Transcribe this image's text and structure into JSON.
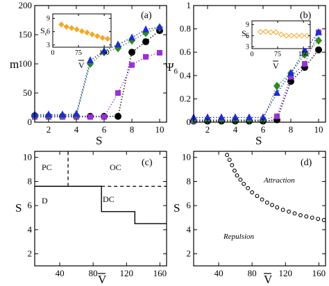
{
  "chart_data": [
    {
      "type": "scatter",
      "panel_label": "(a)",
      "xlabel": "S",
      "ylabel": "m",
      "xlim": [
        1,
        10.5
      ],
      "ylim": [
        0,
        200
      ],
      "xticks": [
        "2",
        "4",
        "6",
        "8",
        "10"
      ],
      "yticks": [
        "0",
        "50",
        "100",
        "150",
        "200"
      ],
      "colors": {
        "blue": "#1f2bd8",
        "green": "#2e8b22",
        "purple": "#9b30d9",
        "black": "#000000"
      },
      "series": [
        {
          "color": "blue",
          "marker": "triangle",
          "x": [
            1,
            2,
            3,
            4,
            5,
            6,
            7,
            8,
            9,
            10
          ],
          "y": [
            13,
            13,
            13,
            14,
            106,
            122,
            133,
            145,
            159,
            163
          ]
        },
        {
          "color": "green",
          "marker": "diamond",
          "x": [
            1,
            2,
            3,
            4,
            5,
            6,
            7,
            8,
            9,
            10
          ],
          "y": [
            11,
            11,
            11,
            12,
            100,
            120,
            127,
            140,
            153,
            162
          ]
        },
        {
          "color": "purple",
          "marker": "square",
          "x": [
            1,
            2,
            3,
            4,
            5,
            6,
            7,
            8,
            9,
            10
          ],
          "y": [
            9,
            9,
            9,
            9,
            9,
            9,
            50,
            98,
            112,
            119
          ]
        },
        {
          "color": "black",
          "marker": "circle",
          "x": [
            1,
            2,
            3,
            4,
            5,
            6,
            7,
            8,
            9,
            10
          ],
          "y": [
            11,
            10,
            10,
            10,
            10,
            10,
            10,
            120,
            138,
            157
          ]
        }
      ],
      "inset": {
        "ylabel": "S_c",
        "xlim": [
          0,
          170
        ],
        "ylim": [
          2.5,
          10
        ],
        "xticks": [
          "0",
          "75",
          "150"
        ],
        "yticks": [
          "3",
          "6",
          "9"
        ],
        "color": "#f5a623",
        "series": {
          "x": [
            25,
            40,
            55,
            70,
            85,
            100,
            115,
            130,
            145,
            160
          ],
          "y": [
            7.6,
            7.1,
            6.8,
            6.5,
            6.1,
            5.8,
            5.4,
            5.0,
            4.6,
            4.4
          ]
        }
      }
    },
    {
      "type": "scatter",
      "panel_label": "(b)",
      "xlabel": "S",
      "ylabel": "Ψ6",
      "xlim": [
        1,
        10.5
      ],
      "ylim": [
        0,
        1
      ],
      "xticks": [
        "2",
        "4",
        "6",
        "8",
        "10"
      ],
      "yticks": [
        "0",
        "0.2",
        "0.4",
        "0.6",
        "0.8",
        "1"
      ],
      "series": [
        {
          "color": "blue",
          "marker": "triangle",
          "x": [
            1,
            2,
            3,
            4,
            5,
            6,
            7,
            8,
            9,
            10
          ],
          "y": [
            0.04,
            0.04,
            0.04,
            0.04,
            0.04,
            0.04,
            0.25,
            0.42,
            0.62,
            0.77
          ]
        },
        {
          "color": "green",
          "marker": "diamond",
          "x": [
            1,
            2,
            3,
            4,
            5,
            6,
            7,
            8,
            9,
            10
          ],
          "y": [
            0.02,
            0.02,
            0.02,
            0.02,
            0.02,
            0.02,
            0.31,
            0.42,
            0.58,
            0.7
          ]
        },
        {
          "color": "purple",
          "marker": "square",
          "x": [
            1,
            2,
            3,
            4,
            5,
            6,
            7,
            8,
            9,
            10
          ],
          "y": [
            0.01,
            0.02,
            0.02,
            0.02,
            0.02,
            0.02,
            0.05,
            0.39,
            0.5,
            0.77
          ]
        },
        {
          "color": "black",
          "marker": "circle",
          "x": [
            1,
            2,
            3,
            4,
            5,
            6,
            7,
            8,
            9,
            10
          ],
          "y": [
            0.01,
            0.01,
            0.01,
            0.01,
            0.01,
            0.01,
            0.02,
            0.35,
            0.47,
            0.62
          ]
        }
      ],
      "inset": {
        "ylabel": "S_c",
        "xlim": [
          0,
          170
        ],
        "ylim": [
          2.5,
          10
        ],
        "xticks": [
          "0",
          "75",
          "150"
        ],
        "yticks": [
          "3",
          "6",
          "9"
        ],
        "color": "#f5a623",
        "series": {
          "x": [
            25,
            40,
            55,
            70,
            85,
            100,
            115,
            130,
            145,
            160
          ],
          "y": [
            7.0,
            7.1,
            6.9,
            6.9,
            6.3,
            6.0,
            6.0,
            6.0,
            6.0,
            6.0
          ]
        }
      }
    },
    {
      "type": "line",
      "panel_label": "(c)",
      "xlabel": "V̄",
      "ylabel": "S",
      "xlim": [
        10,
        168
      ],
      "ylim": [
        1,
        10.5
      ],
      "xticks": [
        "40",
        "80",
        "120",
        "160"
      ],
      "yticks": [
        "2",
        "4",
        "6",
        "8",
        "10"
      ],
      "regions": [
        "PC",
        "OC",
        "D",
        "DC"
      ],
      "boundaries": {
        "solid_step": [
          [
            10,
            7.6
          ],
          [
            90,
            7.6
          ],
          [
            90,
            5.5
          ],
          [
            130,
            5.5
          ],
          [
            130,
            4.5
          ],
          [
            168,
            4.5
          ]
        ],
        "dashed_vertical": [
          [
            50,
            7.6
          ],
          [
            50,
            10.5
          ]
        ],
        "dashed_horizontal": [
          [
            90,
            7.6
          ],
          [
            168,
            7.6
          ]
        ]
      }
    },
    {
      "type": "scatter",
      "panel_label": "(d)",
      "xlabel": "V̄",
      "ylabel": "S",
      "xlim": [
        10,
        168
      ],
      "ylim": [
        1,
        10.5
      ],
      "xticks": [
        "40",
        "80",
        "120",
        "160"
      ],
      "yticks": [
        "2",
        "4",
        "6",
        "8",
        "10"
      ],
      "regions": [
        "Attraction",
        "Repulsion"
      ],
      "series": {
        "x": [
          50,
          53,
          56,
          59,
          62,
          66,
          70,
          75,
          80,
          86,
          92,
          98,
          104,
          110,
          117,
          124,
          131,
          138,
          145,
          152,
          159,
          166
        ],
        "y": [
          10.2,
          9.8,
          9.35,
          8.9,
          8.5,
          8.15,
          7.8,
          7.45,
          7.1,
          6.8,
          6.5,
          6.25,
          6.05,
          5.85,
          5.65,
          5.5,
          5.35,
          5.2,
          5.1,
          5.0,
          4.9,
          4.8
        ]
      }
    }
  ]
}
